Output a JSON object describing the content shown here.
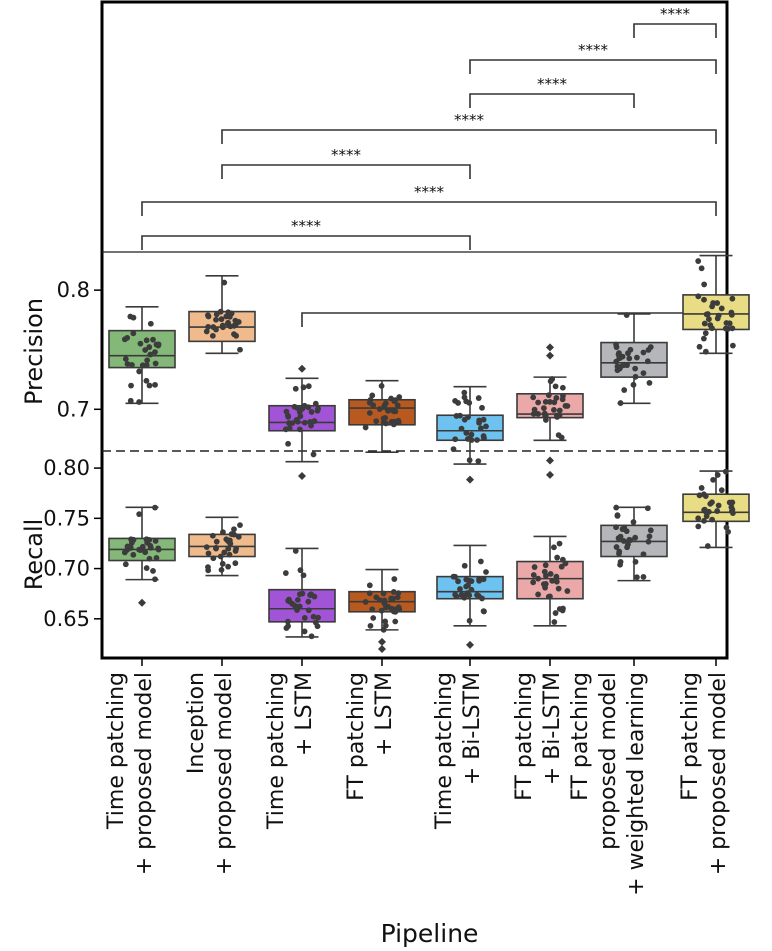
{
  "chart_data": {
    "type": "box",
    "xlabel": "Pipeline",
    "categories": [
      [
        "Time patching",
        "+ proposed model"
      ],
      [
        "Inception",
        "+ proposed model"
      ],
      [
        "Time patching",
        "+ LSTM"
      ],
      [
        "FT patching",
        "+ LSTM"
      ],
      [
        "Time patching",
        "+ Bi-LSTM"
      ],
      [
        "FT patching",
        "+ Bi-LSTM"
      ],
      [
        "FT patching",
        "proposed model",
        "+ weighted learning"
      ],
      [
        "FT patching",
        "+ proposed model"
      ]
    ],
    "colors": [
      "#84b878",
      "#f0bb8c",
      "#a155d6",
      "#b85a1f",
      "#6ec2ef",
      "#eba8a8",
      "#b4b6ba",
      "#e8dc84"
    ],
    "precision": {
      "ylabel": "Precision",
      "ylim": [
        0.665,
        0.832
      ],
      "yticks": [
        0.7,
        0.8
      ],
      "ytick_labels": [
        "0.7",
        "0.8"
      ],
      "boxes": [
        {
          "q1": 0.735,
          "median": 0.745,
          "q3": 0.766,
          "whislo": 0.705,
          "whishi": 0.786,
          "fliers": []
        },
        {
          "q1": 0.757,
          "median": 0.769,
          "q3": 0.782,
          "whislo": 0.747,
          "whishi": 0.812,
          "fliers": []
        },
        {
          "q1": 0.682,
          "median": 0.689,
          "q3": 0.703,
          "whislo": 0.656,
          "whishi": 0.726,
          "fliers": [
            0.734,
            0.644
          ]
        },
        {
          "q1": 0.687,
          "median": 0.701,
          "q3": 0.708,
          "whislo": 0.664,
          "whishi": 0.724,
          "fliers": []
        },
        {
          "q1": 0.674,
          "median": 0.682,
          "q3": 0.695,
          "whislo": 0.654,
          "whishi": 0.719,
          "fliers": [
            0.641
          ]
        },
        {
          "q1": 0.693,
          "median": 0.696,
          "q3": 0.713,
          "whislo": 0.674,
          "whishi": 0.727,
          "fliers": [
            0.752,
            0.745,
            0.657,
            0.645
          ]
        },
        {
          "q1": 0.727,
          "median": 0.739,
          "q3": 0.756,
          "whislo": 0.705,
          "whishi": 0.78,
          "fliers": []
        },
        {
          "q1": 0.767,
          "median": 0.78,
          "q3": 0.796,
          "whislo": 0.747,
          "whishi": 0.829,
          "fliers": []
        }
      ]
    },
    "recall": {
      "ylabel": "Recall",
      "ylim": [
        0.611,
        0.817
      ],
      "yticks": [
        0.65,
        0.7,
        0.75,
        0.8
      ],
      "ytick_labels": [
        "0.65",
        "0.70",
        "0.75",
        "0.80"
      ],
      "boxes": [
        {
          "q1": 0.708,
          "median": 0.719,
          "q3": 0.73,
          "whislo": 0.689,
          "whishi": 0.761,
          "fliers": [
            0.666
          ]
        },
        {
          "q1": 0.712,
          "median": 0.722,
          "q3": 0.734,
          "whislo": 0.693,
          "whishi": 0.751,
          "fliers": []
        },
        {
          "q1": 0.647,
          "median": 0.66,
          "q3": 0.679,
          "whislo": 0.632,
          "whishi": 0.72,
          "fliers": []
        },
        {
          "q1": 0.657,
          "median": 0.667,
          "q3": 0.677,
          "whislo": 0.639,
          "whishi": 0.699,
          "fliers": [
            0.627,
            0.62
          ]
        },
        {
          "q1": 0.67,
          "median": 0.677,
          "q3": 0.692,
          "whislo": 0.643,
          "whishi": 0.723,
          "fliers": [
            0.624
          ]
        },
        {
          "q1": 0.67,
          "median": 0.69,
          "q3": 0.707,
          "whislo": 0.643,
          "whishi": 0.732,
          "fliers": []
        },
        {
          "q1": 0.712,
          "median": 0.727,
          "q3": 0.743,
          "whislo": 0.688,
          "whishi": 0.761,
          "fliers": []
        },
        {
          "q1": 0.747,
          "median": 0.756,
          "q3": 0.774,
          "whislo": 0.721,
          "whishi": 0.797,
          "fliers": []
        }
      ]
    },
    "significance": [
      {
        "from": 7,
        "to": 8,
        "label": "****"
      },
      {
        "from": 5,
        "to": 8,
        "label": "****"
      },
      {
        "from": 5,
        "to": 7,
        "label": "****"
      },
      {
        "from": 2,
        "to": 8,
        "label": "****"
      },
      {
        "from": 2,
        "to": 5,
        "label": "****"
      },
      {
        "from": 1,
        "to": 8,
        "label": "****"
      },
      {
        "from": 1,
        "to": 5,
        "label": "****"
      },
      {
        "from": 3,
        "to": 8,
        "label": ""
      }
    ],
    "panel_separator": "dashed"
  }
}
